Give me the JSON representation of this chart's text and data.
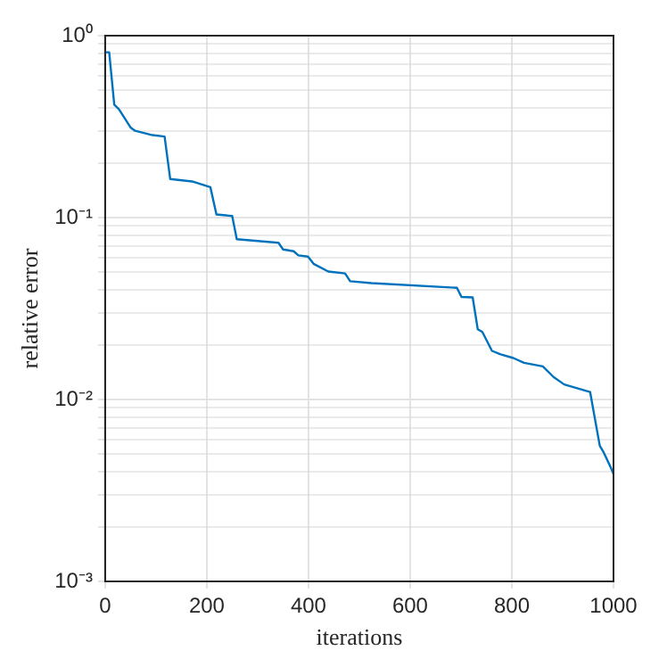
{
  "chart_data": {
    "type": "line",
    "xlabel": "iterations",
    "ylabel": "relative error",
    "color": "#0072bd",
    "x": [
      0,
      8,
      18,
      27,
      50,
      59,
      90,
      117,
      128,
      171,
      207,
      219,
      250,
      259,
      341,
      350,
      371,
      380,
      399,
      410,
      439,
      472,
      482,
      524,
      692,
      701,
      723,
      733,
      742,
      761,
      778,
      803,
      824,
      861,
      882,
      903,
      954,
      973,
      981,
      995,
      1000
    ],
    "values": [
      0.81,
      0.81,
      0.417,
      0.395,
      0.313,
      0.3,
      0.285,
      0.279,
      0.163,
      0.158,
      0.147,
      0.104,
      0.102,
      0.076,
      0.0727,
      0.0668,
      0.0653,
      0.062,
      0.061,
      0.0557,
      0.0505,
      0.0493,
      0.0447,
      0.0436,
      0.0411,
      0.0366,
      0.0364,
      0.0243,
      0.0235,
      0.0185,
      0.0177,
      0.0169,
      0.0159,
      0.0152,
      0.0133,
      0.0121,
      0.011,
      0.00557,
      0.0051,
      0.0042,
      0.0039
    ],
    "xlim": [
      0,
      1000
    ],
    "xticks": [
      0,
      200,
      400,
      600,
      800,
      1000
    ],
    "ylim": [
      0.001,
      1
    ],
    "log": "y",
    "yticks": [
      {
        "value": 0.001,
        "label": "10⁻³"
      },
      {
        "value": 0.002,
        "label": null
      },
      {
        "value": 0.003,
        "label": null
      },
      {
        "value": 0.004,
        "label": null
      },
      {
        "value": 0.005,
        "label": null
      },
      {
        "value": 0.006,
        "label": null
      },
      {
        "value": 0.007,
        "label": null
      },
      {
        "value": 0.008,
        "label": null
      },
      {
        "value": 0.009,
        "label": null
      },
      {
        "value": 0.01,
        "label": "10⁻²"
      },
      {
        "value": 0.02,
        "label": null
      },
      {
        "value": 0.03,
        "label": null
      },
      {
        "value": 0.04,
        "label": null
      },
      {
        "value": 0.05,
        "label": null
      },
      {
        "value": 0.06,
        "label": null
      },
      {
        "value": 0.07,
        "label": null
      },
      {
        "value": 0.08,
        "label": null
      },
      {
        "value": 0.09,
        "label": null
      },
      {
        "value": 0.1,
        "label": "10⁻¹"
      },
      {
        "value": 0.2,
        "label": null
      },
      {
        "value": 0.3,
        "label": null
      },
      {
        "value": 0.4,
        "label": null
      },
      {
        "value": 0.5,
        "label": null
      },
      {
        "value": 0.6,
        "label": null
      },
      {
        "value": 0.7,
        "label": null
      },
      {
        "value": 0.8,
        "label": null
      },
      {
        "value": 0.9,
        "label": null
      },
      {
        "value": 1,
        "label": "10⁰"
      }
    ],
    "grid": true,
    "legend": false,
    "marker": "none",
    "line_style": "solid"
  }
}
